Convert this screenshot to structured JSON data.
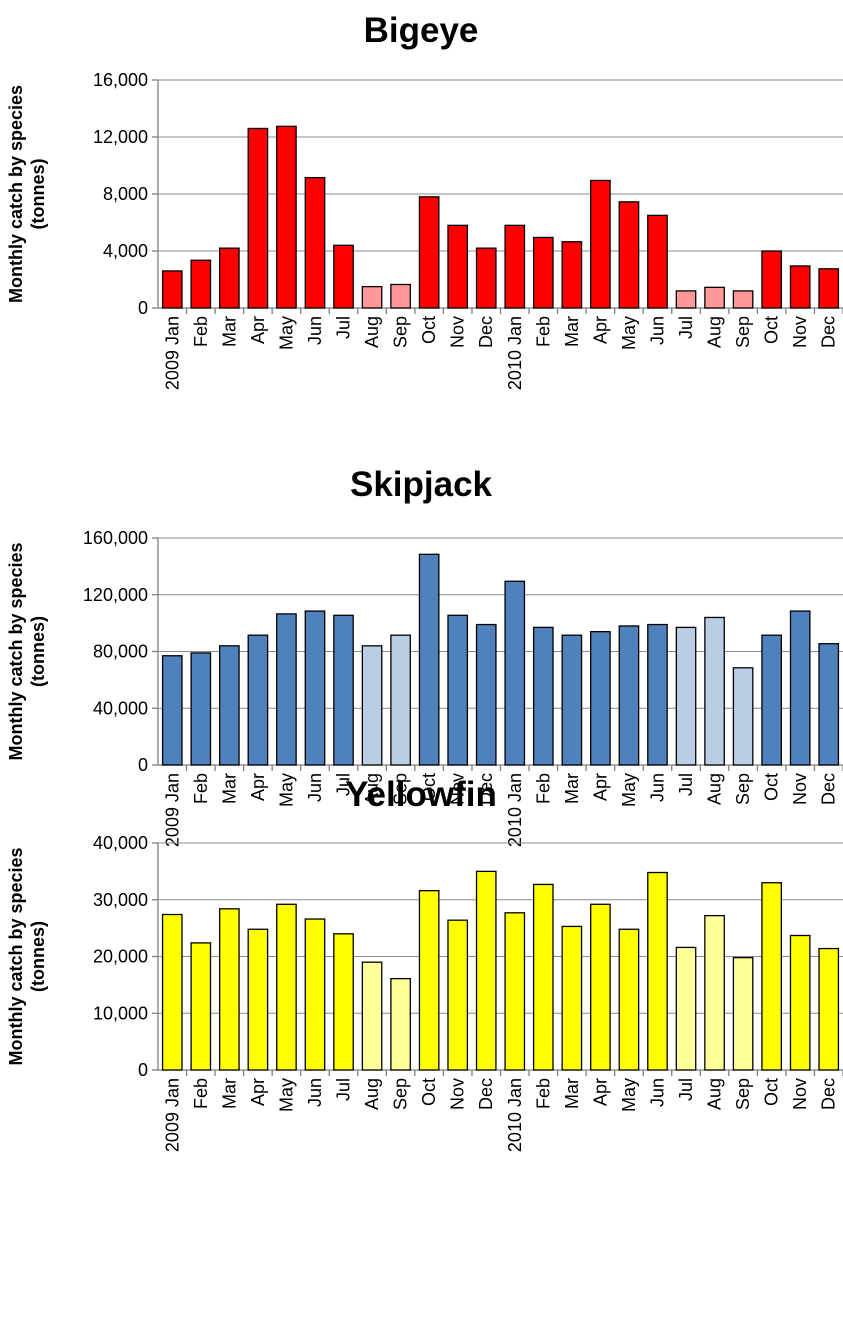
{
  "chart_data": [
    {
      "type": "bar",
      "title": "Bigeye",
      "ylabel": "Monthly catch by species (tonnes)",
      "ylabel_lines": [
        "Monthly catch by species",
        "(tonnes)"
      ],
      "ylim": [
        0,
        16000
      ],
      "yticks": [
        0,
        4000,
        8000,
        12000,
        16000
      ],
      "ytick_labels": [
        "0",
        "4,000",
        "8,000",
        "12,000",
        "16,000"
      ],
      "grid": true,
      "legend": "none",
      "categories": [
        "2009 Jan",
        "Feb",
        "Mar",
        "Apr",
        "May",
        "Jun",
        "Jul",
        "Aug",
        "Sep",
        "Oct",
        "Nov",
        "Dec",
        "2010 Jan",
        "Feb",
        "Mar",
        "Apr",
        "May",
        "Jun",
        "Jul",
        "Aug",
        "Sep",
        "Oct",
        "Nov",
        "Dec"
      ],
      "values": [
        2600,
        3350,
        4200,
        12600,
        12750,
        9150,
        4400,
        1500,
        1650,
        7800,
        5800,
        4200,
        5800,
        4950,
        4650,
        8950,
        7450,
        6500,
        1200,
        1450,
        1200,
        4000,
        2950,
        2750
      ],
      "highlighted": [
        false,
        false,
        false,
        false,
        false,
        false,
        false,
        true,
        true,
        false,
        false,
        false,
        false,
        false,
        false,
        false,
        false,
        false,
        true,
        true,
        true,
        false,
        false,
        false
      ],
      "colors": {
        "main": "#ff0000",
        "highlight": "#ff9999"
      }
    },
    {
      "type": "bar",
      "title": "Skipjack",
      "ylabel": "Monthly catch by species (tonnes)",
      "ylabel_lines": [
        "Monthly catch by species",
        "(tonnes)"
      ],
      "ylim": [
        0,
        160000
      ],
      "yticks": [
        0,
        40000,
        80000,
        120000,
        160000
      ],
      "ytick_labels": [
        "0",
        "40,000",
        "80,000",
        "120,000",
        "160,000"
      ],
      "grid": true,
      "legend": "none",
      "categories": [
        "2009 Jan",
        "Feb",
        "Mar",
        "Apr",
        "May",
        "Jun",
        "Jul",
        "Aug",
        "Sep",
        "Oct",
        "Nov",
        "Dec",
        "2010 Jan",
        "Feb",
        "Mar",
        "Apr",
        "May",
        "Jun",
        "Jul",
        "Aug",
        "Sep",
        "Oct",
        "Nov",
        "Dec"
      ],
      "values": [
        77000,
        79000,
        84000,
        91500,
        106500,
        108500,
        105500,
        84000,
        91500,
        148500,
        105500,
        99000,
        129500,
        97000,
        91500,
        94000,
        98000,
        99000,
        97000,
        104000,
        68500,
        91500,
        108500,
        85500
      ],
      "highlighted": [
        false,
        false,
        false,
        false,
        false,
        false,
        false,
        true,
        true,
        false,
        false,
        false,
        false,
        false,
        false,
        false,
        false,
        false,
        true,
        true,
        true,
        false,
        false,
        false
      ],
      "colors": {
        "main": "#4f81bd",
        "highlight": "#b9cde5"
      }
    },
    {
      "type": "bar",
      "title": "Yellowfin",
      "ylabel": "Monthly catch by species (tonnes)",
      "ylabel_lines": [
        "Monthly catch by species",
        "(tonnes)"
      ],
      "ylim": [
        0,
        40000
      ],
      "yticks": [
        0,
        10000,
        20000,
        30000,
        40000
      ],
      "ytick_labels": [
        "0",
        "10,000",
        "20,000",
        "30,000",
        "40,000"
      ],
      "grid": true,
      "legend": "none",
      "categories": [
        "2009 Jan",
        "Feb",
        "Mar",
        "Apr",
        "May",
        "Jun",
        "Jul",
        "Aug",
        "Sep",
        "Oct",
        "Nov",
        "Dec",
        "2010 Jan",
        "Feb",
        "Mar",
        "Apr",
        "May",
        "Jun",
        "Jul",
        "Aug",
        "Sep",
        "Oct",
        "Nov",
        "Dec"
      ],
      "values": [
        27400,
        22400,
        28400,
        24800,
        29200,
        26600,
        24000,
        19000,
        16100,
        31600,
        26400,
        35000,
        27700,
        32700,
        25300,
        29200,
        24800,
        34800,
        21600,
        27200,
        19800,
        33000,
        23700,
        21400
      ],
      "highlighted": [
        false,
        false,
        false,
        false,
        false,
        false,
        false,
        true,
        true,
        false,
        false,
        false,
        false,
        false,
        false,
        false,
        false,
        false,
        true,
        true,
        true,
        false,
        false,
        false
      ],
      "colors": {
        "main": "#ffff00",
        "highlight": "#ffff99"
      }
    }
  ]
}
